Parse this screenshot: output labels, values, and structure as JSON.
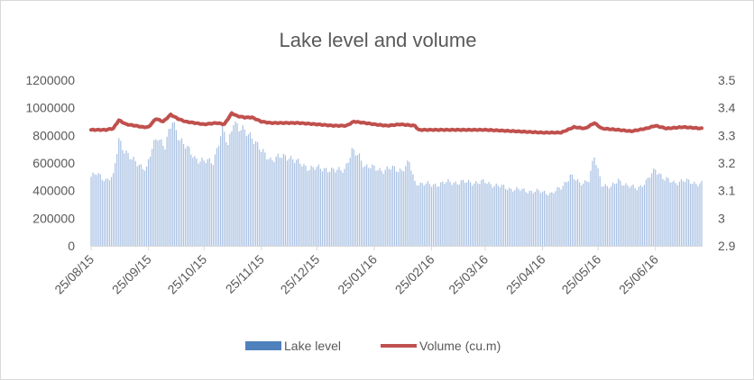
{
  "chart_data": {
    "type": "bar",
    "title": "Lake level and volume",
    "legend_position": "bottom",
    "grid": false,
    "colors": {
      "bar": "#a9c1e3",
      "line": "#c0504d",
      "legend_bar": "#4f81bd"
    },
    "x_ticks": [
      "25/08/15",
      "25/09/15",
      "25/10/15",
      "25/11/15",
      "25/12/15",
      "25/01/16",
      "25/02/16",
      "25/03/16",
      "25/04/16",
      "25/05/16",
      "25/06/16"
    ],
    "y_left": {
      "ylim": [
        0,
        1200000
      ],
      "ticks": [
        "0",
        "200000",
        "400000",
        "600000",
        "800000",
        "1000000",
        "1200000"
      ]
    },
    "y_right": {
      "ylim": [
        2.9,
        3.5
      ],
      "ticks": [
        "2.9",
        "3",
        "3.1",
        "3.2",
        "3.3",
        "3.4",
        "3.5"
      ]
    },
    "series": [
      {
        "name": "Lake level",
        "type": "bar",
        "axis": "left",
        "keypoints": [
          [
            "25/08/15",
            500000
          ],
          [
            "28/08/15",
            520000
          ],
          [
            "02/09/15",
            480000
          ],
          [
            "06/09/15",
            500000
          ],
          [
            "09/09/15",
            770000
          ],
          [
            "12/09/15",
            700000
          ],
          [
            "16/09/15",
            620000
          ],
          [
            "20/09/15",
            590000
          ],
          [
            "24/09/15",
            560000
          ],
          [
            "27/09/15",
            700000
          ],
          [
            "30/09/15",
            800000
          ],
          [
            "04/10/15",
            720000
          ],
          [
            "08/10/15",
            900000
          ],
          [
            "12/10/15",
            780000
          ],
          [
            "16/10/15",
            700000
          ],
          [
            "20/10/15",
            640000
          ],
          [
            "25/10/15",
            610000
          ],
          [
            "30/10/15",
            610000
          ],
          [
            "04/11/15",
            850000
          ],
          [
            "07/11/15",
            720000
          ],
          [
            "10/11/15",
            920000
          ],
          [
            "13/11/15",
            850000
          ],
          [
            "16/11/15",
            820000
          ],
          [
            "20/11/15",
            800000
          ],
          [
            "25/11/15",
            680000
          ],
          [
            "30/11/15",
            630000
          ],
          [
            "05/12/15",
            640000
          ],
          [
            "10/12/15",
            650000
          ],
          [
            "15/12/15",
            600000
          ],
          [
            "20/12/15",
            570000
          ],
          [
            "25/12/15",
            560000
          ],
          [
            "30/12/15",
            560000
          ],
          [
            "04/01/16",
            540000
          ],
          [
            "09/01/16",
            560000
          ],
          [
            "13/01/16",
            680000
          ],
          [
            "17/01/16",
            650000
          ],
          [
            "20/01/16",
            580000
          ],
          [
            "25/01/16",
            560000
          ],
          [
            "30/01/16",
            550000
          ],
          [
            "04/02/16",
            560000
          ],
          [
            "09/02/16",
            550000
          ],
          [
            "13/02/16",
            600000
          ],
          [
            "16/02/16",
            460000
          ],
          [
            "25/02/16",
            440000
          ],
          [
            "05/03/16",
            460000
          ],
          [
            "15/03/16",
            460000
          ],
          [
            "25/03/16",
            460000
          ],
          [
            "05/04/16",
            420000
          ],
          [
            "15/04/16",
            400000
          ],
          [
            "25/04/16",
            390000
          ],
          [
            "30/04/16",
            380000
          ],
          [
            "05/05/16",
            420000
          ],
          [
            "10/05/16",
            510000
          ],
          [
            "15/05/16",
            450000
          ],
          [
            "20/05/16",
            480000
          ],
          [
            "23/05/16",
            640000
          ],
          [
            "27/05/16",
            450000
          ],
          [
            "01/06/16",
            420000
          ],
          [
            "05/06/16",
            480000
          ],
          [
            "10/06/16",
            430000
          ],
          [
            "15/06/16",
            420000
          ],
          [
            "20/06/16",
            460000
          ],
          [
            "25/06/16",
            560000
          ],
          [
            "30/06/16",
            480000
          ],
          [
            "05/07/16",
            460000
          ],
          [
            "10/07/16",
            470000
          ],
          [
            "15/07/16",
            460000
          ],
          [
            "20/07/16",
            450000
          ]
        ]
      },
      {
        "name": "Volume (cu.m)",
        "type": "line",
        "axis": "right",
        "keypoints": [
          [
            "25/08/15",
            3.32
          ],
          [
            "02/09/15",
            3.32
          ],
          [
            "06/09/15",
            3.325
          ],
          [
            "09/09/15",
            3.355
          ],
          [
            "13/09/15",
            3.34
          ],
          [
            "18/09/15",
            3.335
          ],
          [
            "22/09/15",
            3.33
          ],
          [
            "25/09/15",
            3.33
          ],
          [
            "29/09/15",
            3.36
          ],
          [
            "03/10/15",
            3.35
          ],
          [
            "07/10/15",
            3.375
          ],
          [
            "11/10/15",
            3.36
          ],
          [
            "15/10/15",
            3.35
          ],
          [
            "20/10/15",
            3.345
          ],
          [
            "25/10/15",
            3.34
          ],
          [
            "01/11/15",
            3.345
          ],
          [
            "05/11/15",
            3.34
          ],
          [
            "09/11/15",
            3.38
          ],
          [
            "12/11/15",
            3.37
          ],
          [
            "16/11/15",
            3.365
          ],
          [
            "20/11/15",
            3.365
          ],
          [
            "25/11/15",
            3.35
          ],
          [
            "30/11/15",
            3.345
          ],
          [
            "05/12/15",
            3.345
          ],
          [
            "15/12/15",
            3.345
          ],
          [
            "25/12/15",
            3.34
          ],
          [
            "03/01/16",
            3.335
          ],
          [
            "10/01/16",
            3.335
          ],
          [
            "14/01/16",
            3.35
          ],
          [
            "20/01/16",
            3.345
          ],
          [
            "25/01/16",
            3.34
          ],
          [
            "01/02/16",
            3.335
          ],
          [
            "08/02/16",
            3.34
          ],
          [
            "16/02/16",
            3.335
          ],
          [
            "18/02/16",
            3.32
          ],
          [
            "25/02/16",
            3.32
          ],
          [
            "10/03/16",
            3.32
          ],
          [
            "25/03/16",
            3.32
          ],
          [
            "10/04/16",
            3.315
          ],
          [
            "25/04/16",
            3.31
          ],
          [
            "05/05/16",
            3.31
          ],
          [
            "12/05/16",
            3.33
          ],
          [
            "18/05/16",
            3.325
          ],
          [
            "23/05/16",
            3.345
          ],
          [
            "27/05/16",
            3.325
          ],
          [
            "05/06/16",
            3.32
          ],
          [
            "12/06/16",
            3.315
          ],
          [
            "20/06/16",
            3.325
          ],
          [
            "25/06/16",
            3.335
          ],
          [
            "01/07/16",
            3.325
          ],
          [
            "10/07/16",
            3.33
          ],
          [
            "20/07/16",
            3.325
          ]
        ]
      }
    ]
  }
}
